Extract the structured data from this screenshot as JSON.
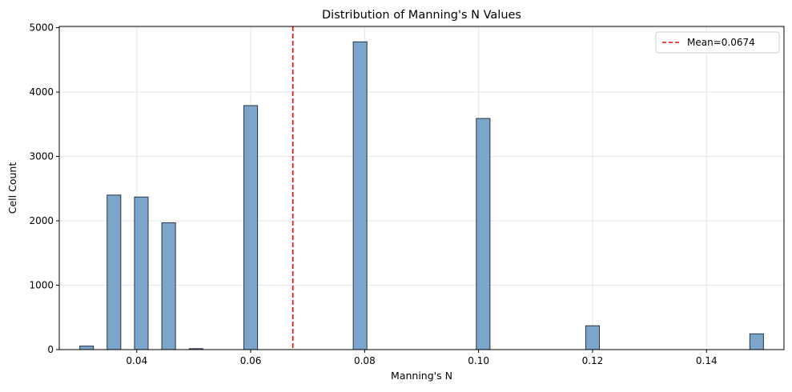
{
  "chart_data": {
    "type": "bar",
    "title": "Distribution of Manning's N Values",
    "xlabel": "Manning's N",
    "ylabel": "Cell Count",
    "xlim": [
      0.0264,
      0.1536
    ],
    "ylim": [
      0,
      5020
    ],
    "xticks": [
      0.04,
      0.06,
      0.08,
      0.1,
      0.12,
      0.14
    ],
    "xtick_labels": [
      "0.04",
      "0.06",
      "0.08",
      "0.10",
      "0.12",
      "0.14"
    ],
    "yticks": [
      0,
      1000,
      2000,
      3000,
      4000,
      5000
    ],
    "ytick_labels": [
      "0",
      "1000",
      "2000",
      "3000",
      "4000",
      "5000"
    ],
    "bin_width": 0.0024,
    "bins": [
      {
        "x0": 0.03,
        "value": 55
      },
      {
        "x0": 0.0348,
        "value": 2400
      },
      {
        "x0": 0.0396,
        "value": 2370
      },
      {
        "x0": 0.0444,
        "value": 1970
      },
      {
        "x0": 0.0492,
        "value": 15
      },
      {
        "x0": 0.0588,
        "value": 3790
      },
      {
        "x0": 0.078,
        "value": 4780
      },
      {
        "x0": 0.0996,
        "value": 3590
      },
      {
        "x0": 0.1188,
        "value": 370
      },
      {
        "x0": 0.1476,
        "value": 245
      }
    ],
    "mean_line": {
      "value": 0.0674,
      "label": "Mean=0.0674",
      "color": "#ff0000"
    },
    "bar_color": "#7ba5cb",
    "bar_edge_color": "#2a3440",
    "grid": true,
    "legend_position": "top-right"
  }
}
